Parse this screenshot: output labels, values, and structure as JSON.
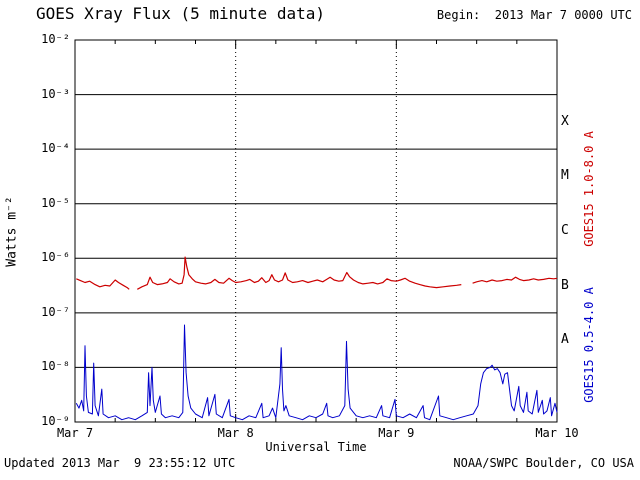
{
  "header": {
    "title": "GOES Xray Flux (5 minute data)",
    "begin": "Begin:  2013 Mar 7 0000 UTC"
  },
  "footer": {
    "updated": "Updated 2013 Mar  9 23:55:12 UTC",
    "credit": "NOAA/SWPC Boulder, CO USA"
  },
  "chart_data": {
    "type": "line",
    "title": "GOES Xray Flux (5 minute data)",
    "xlabel": "Universal Time",
    "ylabel": "Watts m⁻²",
    "x_unit": "hours since 2013 Mar 7 0000 UTC",
    "xlim": [
      0,
      72
    ],
    "ylim": [
      1e-09,
      0.01
    ],
    "y_scale": "log",
    "grid": {
      "horizontal": "solid-per-decade",
      "vertical": "dotted-at-day-boundaries"
    },
    "xticks": [
      {
        "hour": 0,
        "label": "Mar 7"
      },
      {
        "hour": 24,
        "label": "Mar 8"
      },
      {
        "hour": 48,
        "label": "Mar 9"
      },
      {
        "hour": 72,
        "label": "Mar 10"
      }
    ],
    "ytick_exponents": [
      -2,
      -3,
      -4,
      -5,
      -6,
      -7,
      -8,
      -9
    ],
    "ytick_labels": [
      "10⁻²",
      "10⁻³",
      "10⁻⁴",
      "10⁻⁵",
      "10⁻⁶",
      "10⁻⁷",
      "10⁻⁸",
      "10⁻⁹"
    ],
    "flux_classes": [
      {
        "letter": "X",
        "exp_center": -3.5
      },
      {
        "letter": "M",
        "exp_center": -4.5
      },
      {
        "letter": "C",
        "exp_center": -5.5
      },
      {
        "letter": "B",
        "exp_center": -6.5
      },
      {
        "letter": "A",
        "exp_center": -7.5
      }
    ],
    "right_labels": [
      {
        "text": "GOES15 1.0-8.0 A",
        "color": "#cc0000",
        "center_y_exp": -4.75
      },
      {
        "text": "GOES15 0.5-4.0 A",
        "color": "#0000cc",
        "center_y_exp": -7.6
      }
    ],
    "colors": {
      "long_band": "#cc0000",
      "short_band": "#0000cc",
      "axis": "#000000"
    },
    "series": [
      {
        "name": "GOES15 1.0-8.0 A",
        "color": "#cc0000",
        "width": 1.2,
        "points": [
          [
            0.2,
            4.2e-07
          ],
          [
            0.8,
            3.9e-07
          ],
          [
            1.5,
            3.6e-07
          ],
          [
            2.2,
            3.8e-07
          ],
          [
            3.0,
            3.3e-07
          ],
          [
            3.7,
            3e-07
          ],
          [
            4.5,
            3.2e-07
          ],
          [
            5.2,
            3.1e-07
          ],
          [
            6.0,
            4e-07
          ],
          [
            6.5,
            3.6e-07
          ],
          [
            7.2,
            3.2e-07
          ],
          [
            7.8,
            2.9e-07
          ],
          [
            8.1,
            2.7e-07
          ],
          [
            8.4,
            null
          ],
          [
            9.3,
            2.7e-07
          ],
          [
            10.0,
            3e-07
          ],
          [
            10.8,
            3.3e-07
          ],
          [
            11.2,
            4.5e-07
          ],
          [
            11.6,
            3.6e-07
          ],
          [
            12.3,
            3.3e-07
          ],
          [
            13.0,
            3.4e-07
          ],
          [
            13.8,
            3.6e-07
          ],
          [
            14.2,
            4.2e-07
          ],
          [
            14.8,
            3.7e-07
          ],
          [
            15.5,
            3.4e-07
          ],
          [
            16.0,
            3.5e-07
          ],
          [
            16.3,
            5e-07
          ],
          [
            16.45,
            1.05e-06
          ],
          [
            16.7,
            7e-07
          ],
          [
            17.0,
            5e-07
          ],
          [
            17.5,
            4.2e-07
          ],
          [
            18.0,
            3.7e-07
          ],
          [
            18.8,
            3.5e-07
          ],
          [
            19.5,
            3.4e-07
          ],
          [
            20.3,
            3.6e-07
          ],
          [
            20.9,
            4.1e-07
          ],
          [
            21.5,
            3.6e-07
          ],
          [
            22.2,
            3.5e-07
          ],
          [
            23.0,
            4.3e-07
          ],
          [
            23.5,
            3.9e-07
          ],
          [
            24.0,
            3.6e-07
          ],
          [
            24.8,
            3.7e-07
          ],
          [
            25.6,
            3.9e-07
          ],
          [
            26.1,
            4.1e-07
          ],
          [
            26.8,
            3.6e-07
          ],
          [
            27.4,
            3.8e-07
          ],
          [
            27.9,
            4.4e-07
          ],
          [
            28.5,
            3.6e-07
          ],
          [
            29.0,
            3.9e-07
          ],
          [
            29.4,
            5e-07
          ],
          [
            29.8,
            4e-07
          ],
          [
            30.4,
            3.7e-07
          ],
          [
            31.0,
            4e-07
          ],
          [
            31.4,
            5.4e-07
          ],
          [
            31.8,
            4e-07
          ],
          [
            32.5,
            3.6e-07
          ],
          [
            33.2,
            3.7e-07
          ],
          [
            34.0,
            3.9e-07
          ],
          [
            34.8,
            3.6e-07
          ],
          [
            35.5,
            3.8e-07
          ],
          [
            36.2,
            4e-07
          ],
          [
            37.0,
            3.7e-07
          ],
          [
            37.6,
            4.1e-07
          ],
          [
            38.1,
            4.5e-07
          ],
          [
            38.7,
            4e-07
          ],
          [
            39.4,
            3.8e-07
          ],
          [
            40.0,
            3.9e-07
          ],
          [
            40.6,
            5.5e-07
          ],
          [
            41.0,
            4.6e-07
          ],
          [
            41.6,
            4e-07
          ],
          [
            42.3,
            3.6e-07
          ],
          [
            43.0,
            3.4e-07
          ],
          [
            43.8,
            3.5e-07
          ],
          [
            44.5,
            3.6e-07
          ],
          [
            45.2,
            3.4e-07
          ],
          [
            46.0,
            3.6e-07
          ],
          [
            46.6,
            4.2e-07
          ],
          [
            47.2,
            3.9e-07
          ],
          [
            48.0,
            3.8e-07
          ],
          [
            48.6,
            4e-07
          ],
          [
            49.3,
            4.3e-07
          ],
          [
            50.0,
            3.8e-07
          ],
          [
            50.8,
            3.5e-07
          ],
          [
            51.5,
            3.3e-07
          ],
          [
            52.3,
            3.1e-07
          ],
          [
            53.0,
            3e-07
          ],
          [
            54.0,
            2.9e-07
          ],
          [
            55.0,
            3e-07
          ],
          [
            56.0,
            3.1e-07
          ],
          [
            57.0,
            3.2e-07
          ],
          [
            57.7,
            3.3e-07
          ],
          [
            57.9,
            null
          ],
          [
            59.4,
            3.5e-07
          ],
          [
            60.0,
            3.7e-07
          ],
          [
            60.8,
            3.9e-07
          ],
          [
            61.5,
            3.7e-07
          ],
          [
            62.3,
            4e-07
          ],
          [
            63.0,
            3.8e-07
          ],
          [
            63.8,
            3.9e-07
          ],
          [
            64.5,
            4.1e-07
          ],
          [
            65.2,
            4e-07
          ],
          [
            65.8,
            4.5e-07
          ],
          [
            66.4,
            4.1e-07
          ],
          [
            67.0,
            3.9e-07
          ],
          [
            67.8,
            4e-07
          ],
          [
            68.5,
            4.2e-07
          ],
          [
            69.2,
            4e-07
          ],
          [
            70.0,
            4.1e-07
          ],
          [
            70.8,
            4.3e-07
          ],
          [
            71.5,
            4.2e-07
          ],
          [
            72.0,
            4.3e-07
          ]
        ]
      },
      {
        "name": "GOES15 0.5-4.0 A",
        "color": "#0000cc",
        "width": 1,
        "points": [
          [
            0.2,
            2.2e-09
          ],
          [
            0.6,
            1.8e-09
          ],
          [
            1.0,
            2.5e-09
          ],
          [
            1.3,
            1.6e-09
          ],
          [
            1.5,
            2.5e-08
          ],
          [
            1.7,
            3e-09
          ],
          [
            2.0,
            1.5e-09
          ],
          [
            2.6,
            1.4e-09
          ],
          [
            2.8,
            1.2e-08
          ],
          [
            3.0,
            2e-09
          ],
          [
            3.5,
            1.3e-09
          ],
          [
            4.0,
            4e-09
          ],
          [
            4.2,
            1.4e-09
          ],
          [
            5.0,
            1.2e-09
          ],
          [
            6.0,
            1.3e-09
          ],
          [
            7.0,
            1.1e-09
          ],
          [
            8.0,
            1.2e-09
          ],
          [
            9.0,
            1.1e-09
          ],
          [
            10.0,
            1.3e-09
          ],
          [
            10.8,
            1.5e-09
          ],
          [
            11.0,
            8e-09
          ],
          [
            11.2,
            2e-09
          ],
          [
            11.5,
            1e-08
          ],
          [
            11.7,
            2.5e-09
          ],
          [
            12.0,
            1.5e-09
          ],
          [
            12.7,
            3e-09
          ],
          [
            12.9,
            1.4e-09
          ],
          [
            13.5,
            1.2e-09
          ],
          [
            14.5,
            1.3e-09
          ],
          [
            15.5,
            1.2e-09
          ],
          [
            16.1,
            1.5e-09
          ],
          [
            16.35,
            6e-08
          ],
          [
            16.6,
            8e-09
          ],
          [
            16.9,
            3e-09
          ],
          [
            17.3,
            1.8e-09
          ],
          [
            18.0,
            1.4e-09
          ],
          [
            19.0,
            1.2e-09
          ],
          [
            19.8,
            2.8e-09
          ],
          [
            20.0,
            1.3e-09
          ],
          [
            20.9,
            3.2e-09
          ],
          [
            21.1,
            1.4e-09
          ],
          [
            22.0,
            1.2e-09
          ],
          [
            23.0,
            2.6e-09
          ],
          [
            23.2,
            1.3e-09
          ],
          [
            24.0,
            1.2e-09
          ],
          [
            25.0,
            1.1e-09
          ],
          [
            26.0,
            1.3e-09
          ],
          [
            27.0,
            1.2e-09
          ],
          [
            27.9,
            2.2e-09
          ],
          [
            28.1,
            1.2e-09
          ],
          [
            29.0,
            1.3e-09
          ],
          [
            29.5,
            1.8e-09
          ],
          [
            30.0,
            1.2e-09
          ],
          [
            30.6,
            5e-09
          ],
          [
            30.8,
            2.3e-08
          ],
          [
            31.0,
            4e-09
          ],
          [
            31.2,
            1.6e-09
          ],
          [
            31.5,
            2e-09
          ],
          [
            32.0,
            1.3e-09
          ],
          [
            33.0,
            1.2e-09
          ],
          [
            34.0,
            1.1e-09
          ],
          [
            35.0,
            1.3e-09
          ],
          [
            36.0,
            1.2e-09
          ],
          [
            37.0,
            1.4e-09
          ],
          [
            37.6,
            2.2e-09
          ],
          [
            37.8,
            1.3e-09
          ],
          [
            38.5,
            1.2e-09
          ],
          [
            39.5,
            1.3e-09
          ],
          [
            40.3,
            2e-09
          ],
          [
            40.55,
            3e-08
          ],
          [
            40.8,
            4e-09
          ],
          [
            41.1,
            1.8e-09
          ],
          [
            42.0,
            1.3e-09
          ],
          [
            43.0,
            1.2e-09
          ],
          [
            44.0,
            1.3e-09
          ],
          [
            45.0,
            1.2e-09
          ],
          [
            45.8,
            2e-09
          ],
          [
            46.0,
            1.3e-09
          ],
          [
            47.0,
            1.2e-09
          ],
          [
            47.8,
            2.6e-09
          ],
          [
            48.0,
            1.3e-09
          ],
          [
            49.0,
            1.2e-09
          ],
          [
            50.0,
            1.4e-09
          ],
          [
            51.0,
            1.2e-09
          ],
          [
            52.0,
            2e-09
          ],
          [
            52.2,
            1.2e-09
          ],
          [
            53.0,
            1.1e-09
          ],
          [
            54.3,
            3e-09
          ],
          [
            54.5,
            1.3e-09
          ],
          [
            55.5,
            1.2e-09
          ],
          [
            56.5,
            1.1e-09
          ],
          [
            57.5,
            1.2e-09
          ],
          [
            58.5,
            1.3e-09
          ],
          [
            59.5,
            1.4e-09
          ],
          [
            60.2,
            2e-09
          ],
          [
            60.6,
            5e-09
          ],
          [
            61.0,
            8e-09
          ],
          [
            61.5,
            9.5e-09
          ],
          [
            62.0,
            1e-08
          ],
          [
            62.3,
            1.1e-08
          ],
          [
            62.7,
            9e-09
          ],
          [
            63.1,
            9.5e-09
          ],
          [
            63.5,
            8e-09
          ],
          [
            63.9,
            5e-09
          ],
          [
            64.2,
            7.5e-09
          ],
          [
            64.6,
            8e-09
          ],
          [
            64.9,
            4e-09
          ],
          [
            65.2,
            2e-09
          ],
          [
            65.6,
            1.6e-09
          ],
          [
            66.3,
            4.5e-09
          ],
          [
            66.5,
            2e-09
          ],
          [
            67.0,
            1.5e-09
          ],
          [
            67.5,
            3.5e-09
          ],
          [
            67.7,
            1.6e-09
          ],
          [
            68.3,
            1.4e-09
          ],
          [
            69.0,
            3.8e-09
          ],
          [
            69.2,
            1.5e-09
          ],
          [
            69.8,
            2.5e-09
          ],
          [
            70.0,
            1.4e-09
          ],
          [
            70.5,
            1.6e-09
          ],
          [
            71.0,
            2.8e-09
          ],
          [
            71.2,
            1.3e-09
          ],
          [
            71.7,
            2.2e-09
          ],
          [
            72.0,
            1.5e-09
          ]
        ]
      }
    ]
  }
}
